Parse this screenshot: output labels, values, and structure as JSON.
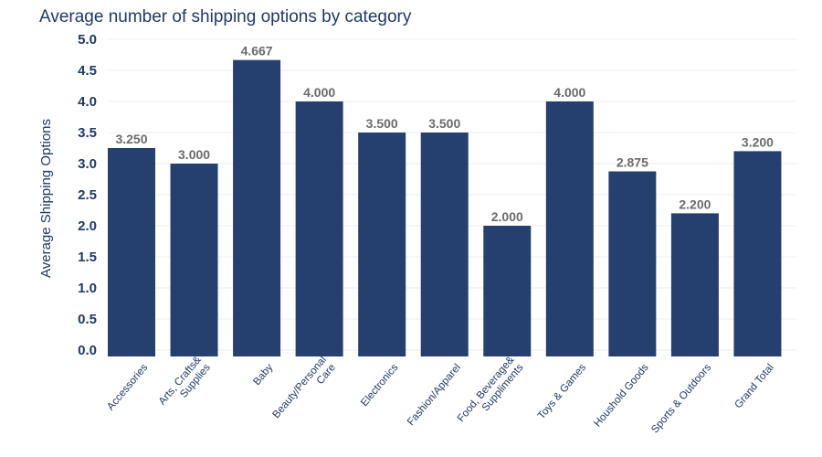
{
  "chart_data": {
    "type": "bar",
    "title": "Average number of shipping options by category",
    "ylabel": "Average Shipping Options",
    "xlabel": "",
    "ylim": [
      0,
      5
    ],
    "yticks": [
      "0.0",
      "0.5",
      "1.0",
      "1.5",
      "2.0",
      "2.5",
      "3.0",
      "3.5",
      "4.0",
      "4.5",
      "5.0"
    ],
    "grid": true,
    "bar_color": "#25406f",
    "categories": [
      [
        "Accessories"
      ],
      [
        "Arts, Crafts&",
        "Supplies"
      ],
      [
        "Baby"
      ],
      [
        "Beauty/Personal",
        "Care"
      ],
      [
        "Electronics"
      ],
      [
        "Fashion/Apparel"
      ],
      [
        "Food, Beverage&",
        "Suppliments"
      ],
      [
        "Toys & Games"
      ],
      [
        "Houshold Goods"
      ],
      [
        "Sports & Outdoors"
      ],
      [
        "Grand Total"
      ]
    ],
    "values": [
      3.25,
      3.0,
      4.667,
      4.0,
      3.5,
      3.5,
      2.0,
      4.0,
      2.875,
      2.2,
      3.2
    ],
    "data_labels": [
      "3.250",
      "3.000",
      "4.667",
      "4.000",
      "3.500",
      "3.500",
      "2.000",
      "4.000",
      "2.875",
      "2.200",
      "3.200"
    ]
  }
}
